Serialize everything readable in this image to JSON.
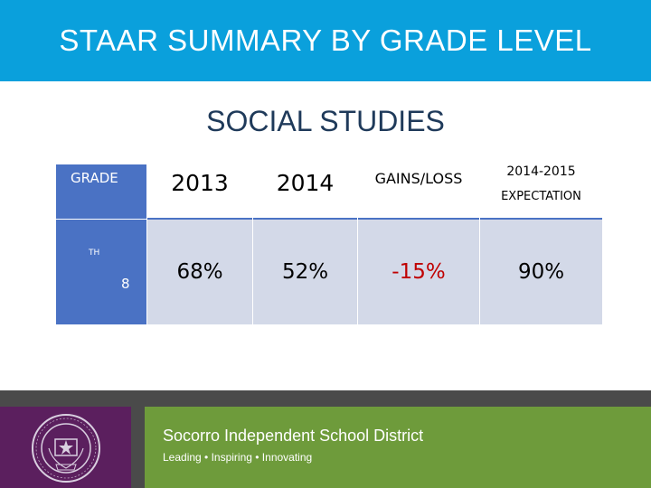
{
  "header": {
    "title": "STAAR SUMMARY BY GRADE LEVEL"
  },
  "subtitle": "SOCIAL STUDIES",
  "table": {
    "headers": {
      "grade": "GRADE",
      "y2013": "2013",
      "y2014": "2014",
      "gains": "GAINS/LOSS",
      "expectation_line1": "2014-2015",
      "expectation_line2": "EXPECTATION"
    },
    "row": {
      "grade_number": "8",
      "grade_suffix": "TH",
      "y2013": "68%",
      "y2014": "52%",
      "gains": "-15%",
      "expectation": "90%"
    }
  },
  "footer": {
    "district": "Socorro Independent School District",
    "tagline": "Leading • Inspiring • Innovating"
  },
  "colors": {
    "header_blue": "#0aa0dc",
    "title_navy": "#1f3a5a",
    "grade_column": "#4a72c4",
    "data_cell": "#d3d9e8",
    "negative": "#c00000",
    "footer_green": "#6e9b3b",
    "footer_purple": "#5b1f5e",
    "footer_gray": "#4a4a4a"
  }
}
